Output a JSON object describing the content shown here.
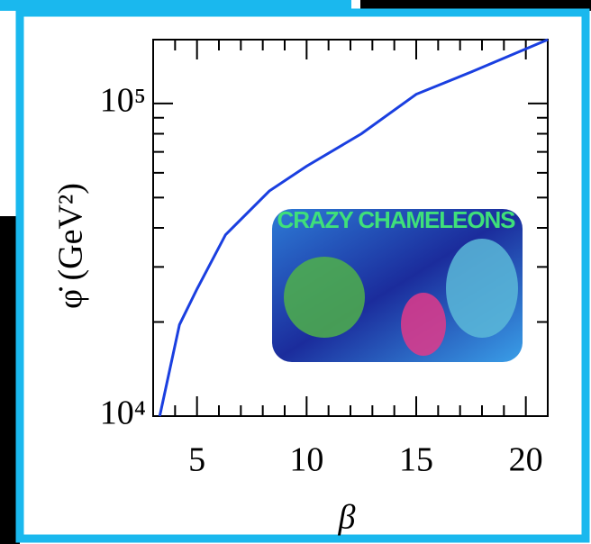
{
  "chart_data": {
    "type": "line",
    "log_y": true,
    "xlabel": "β",
    "ylabel": "φ̇ (GeV²)",
    "x": [
      3.3,
      4.2,
      5,
      6.3,
      8.3,
      10,
      12.5,
      15,
      17.5,
      21
    ],
    "series": [
      {
        "name": "phi-dot",
        "color": "#1a3fe0",
        "values": [
          10000,
          19600,
          25500,
          38000,
          52500,
          63000,
          80000,
          107000,
          126000,
          160000
        ]
      }
    ],
    "xlim": [
      3,
      21
    ],
    "ylim": [
      10000,
      160000
    ],
    "xticks": [
      5,
      10,
      15,
      20
    ],
    "xminorticks": [
      4,
      6,
      7,
      8,
      9,
      11,
      12,
      13,
      14,
      16,
      17,
      18,
      19,
      21
    ],
    "yticks": [
      {
        "value": 10000,
        "label": "10⁴"
      },
      {
        "value": 100000,
        "label": "10⁵"
      }
    ],
    "yminorticks": [
      20000,
      30000,
      40000,
      50000,
      60000,
      70000,
      80000,
      90000
    ],
    "image_caption": "CRAZY CHAMELEONS"
  }
}
